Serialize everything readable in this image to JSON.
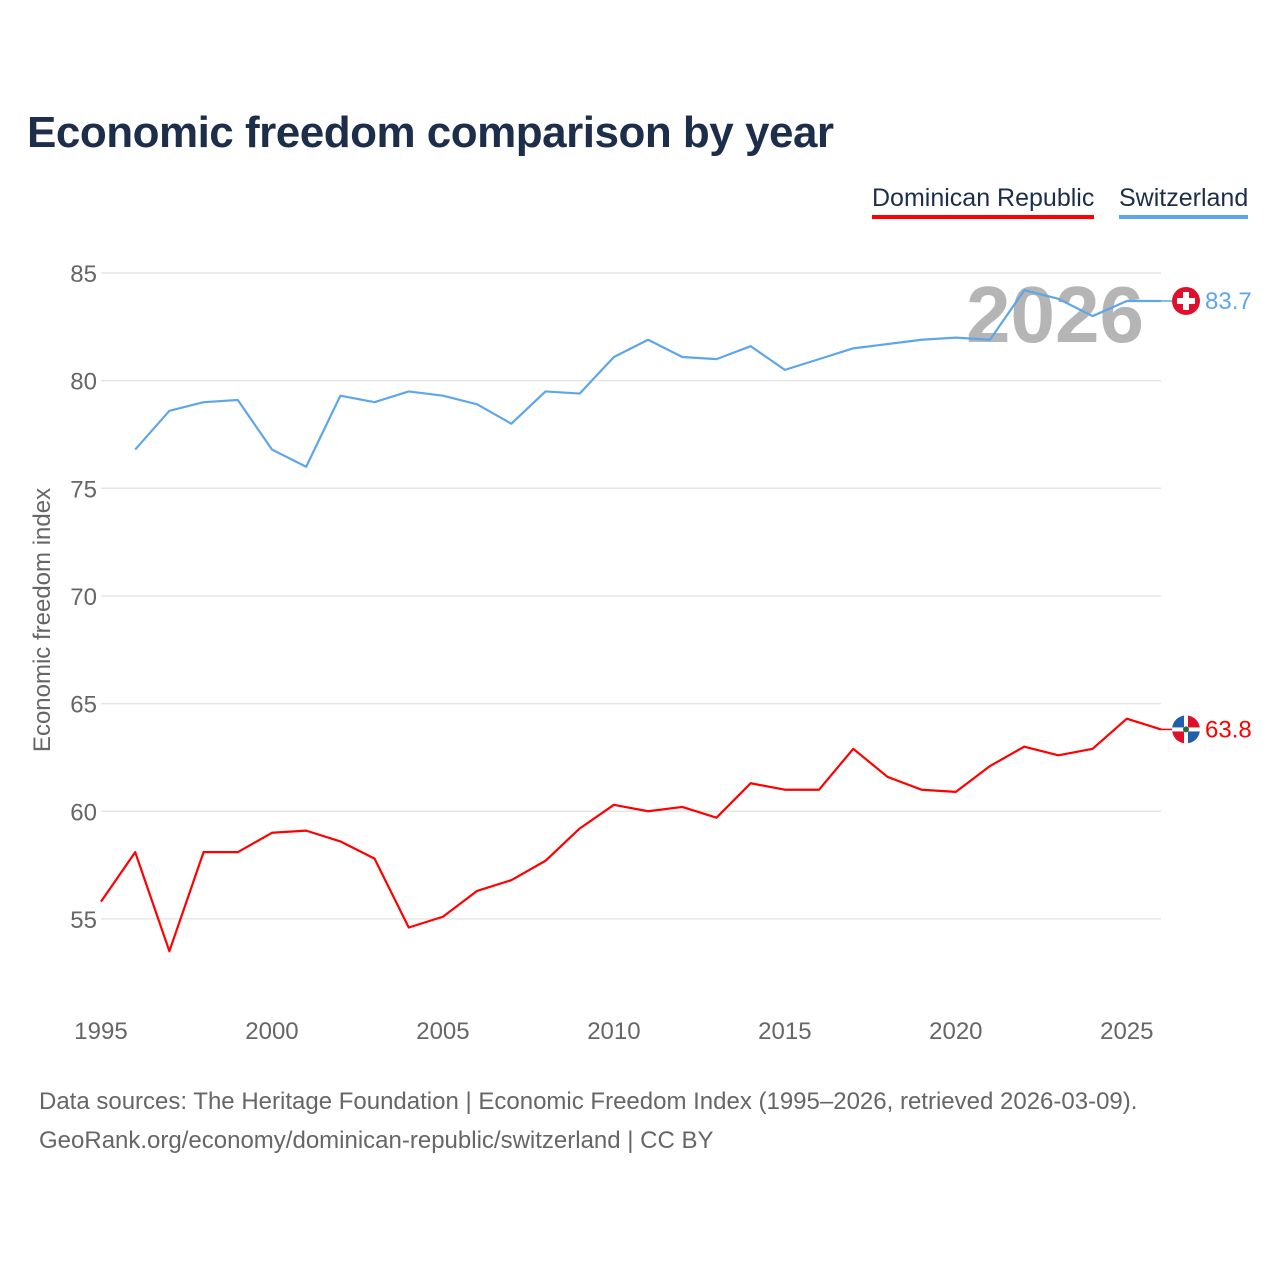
{
  "title": "Economic freedom comparison by year",
  "legend": [
    {
      "label": "Dominican Republic",
      "color": "#ff0000"
    },
    {
      "label": "Switzerland",
      "color": "#5ea6ea"
    }
  ],
  "watermark_year": "2026",
  "footer": {
    "line1": "Data sources: The Heritage Foundation | Economic Freedom Index (1995–2026, retrieved 2026-03-09).",
    "line2": "GeoRank.org/economy/dominican-republic/switzerland | CC BY"
  },
  "chart_data": {
    "type": "line",
    "title": "Economic freedom comparison by year",
    "xlabel": "",
    "ylabel": "Economic freedom index",
    "xlim": [
      1995,
      2026
    ],
    "ylim": [
      50,
      85
    ],
    "x_ticks": [
      "1995",
      "2000",
      "2005",
      "2010",
      "2015",
      "2020",
      "2025"
    ],
    "y_ticks": [
      "55",
      "60",
      "65",
      "70",
      "75",
      "80",
      "85"
    ],
    "grid": true,
    "legend_position": "top-right",
    "series": [
      {
        "name": "Dominican Republic",
        "color": "#ff0000",
        "end_label": "63.8",
        "x": [
          1995,
          1996,
          1997,
          1998,
          1999,
          2000,
          2001,
          2002,
          2003,
          2004,
          2005,
          2006,
          2007,
          2008,
          2009,
          2010,
          2011,
          2012,
          2013,
          2014,
          2015,
          2016,
          2017,
          2018,
          2019,
          2020,
          2021,
          2022,
          2023,
          2024,
          2025,
          2026
        ],
        "values": [
          55.8,
          58.1,
          53.5,
          58.1,
          58.1,
          59.0,
          59.1,
          58.6,
          57.8,
          54.6,
          55.1,
          56.3,
          56.8,
          57.7,
          59.2,
          60.3,
          60.0,
          60.2,
          59.7,
          61.3,
          61.0,
          61.0,
          62.9,
          61.6,
          61.0,
          60.9,
          62.1,
          63.0,
          62.6,
          62.9,
          64.3,
          63.8
        ]
      },
      {
        "name": "Switzerland",
        "color": "#5ea6ea",
        "end_label": "83.7",
        "x": [
          1996,
          1997,
          1998,
          1999,
          2000,
          2001,
          2002,
          2003,
          2004,
          2005,
          2006,
          2007,
          2008,
          2009,
          2010,
          2011,
          2012,
          2013,
          2014,
          2015,
          2016,
          2017,
          2018,
          2019,
          2020,
          2021,
          2022,
          2023,
          2024,
          2025,
          2026
        ],
        "values": [
          76.8,
          78.6,
          79.0,
          79.1,
          76.8,
          76.0,
          79.3,
          79.0,
          79.5,
          79.3,
          78.9,
          78.0,
          79.5,
          79.4,
          81.1,
          81.9,
          81.1,
          81.0,
          81.6,
          80.5,
          81.0,
          81.5,
          81.7,
          81.9,
          82.0,
          81.9,
          84.2,
          83.8,
          83.0,
          83.7,
          83.7
        ]
      }
    ]
  }
}
